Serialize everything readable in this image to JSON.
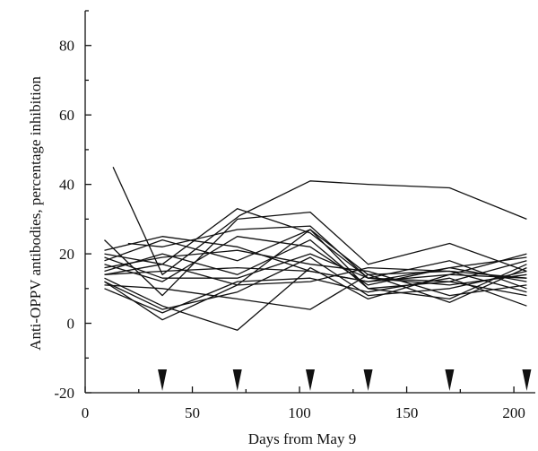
{
  "chart_data": {
    "type": "line",
    "title": "",
    "xlabel": "Days from May 9",
    "ylabel": "Anti-OPPV antibodies, percentage inhibition",
    "xlim": [
      0,
      210
    ],
    "ylim": [
      -20,
      90
    ],
    "x_ticks": [
      0,
      50,
      100,
      150,
      200
    ],
    "y_ticks": [
      -20,
      0,
      20,
      40,
      60,
      80
    ],
    "markers_x": [
      36,
      71,
      105,
      132,
      170,
      206
    ],
    "series": [
      {
        "x": [
          13,
          36,
          72,
          105,
          132,
          170,
          206
        ],
        "y": [
          45,
          14,
          31,
          41,
          40,
          39,
          30
        ]
      },
      {
        "x": [
          9,
          36,
          71,
          105,
          132,
          170,
          206
        ],
        "y": [
          24,
          8,
          30,
          32,
          17,
          23,
          15
        ]
      },
      {
        "x": [
          9,
          36,
          71,
          105,
          132,
          170,
          206
        ],
        "y": [
          20,
          17,
          33,
          26,
          13,
          18,
          10
        ]
      },
      {
        "x": [
          9,
          36,
          71,
          105,
          132,
          170,
          206
        ],
        "y": [
          18,
          24,
          18,
          27,
          14,
          15,
          9
        ]
      },
      {
        "x": [
          9,
          36,
          71,
          105,
          132,
          170,
          206
        ],
        "y": [
          17,
          12,
          25,
          22,
          11,
          16,
          12
        ]
      },
      {
        "x": [
          9,
          36,
          71,
          105,
          132,
          170,
          206
        ],
        "y": [
          15,
          20,
          14,
          24,
          10,
          12,
          18
        ]
      },
      {
        "x": [
          9,
          36,
          71,
          105,
          132,
          170,
          206
        ],
        "y": [
          14,
          15,
          16,
          15,
          12,
          14,
          20
        ]
      },
      {
        "x": [
          9,
          36,
          71,
          105,
          132,
          170,
          206
        ],
        "y": [
          12,
          4,
          9,
          19,
          8,
          10,
          15
        ]
      },
      {
        "x": [
          9,
          36,
          71,
          105,
          132,
          170,
          206
        ],
        "y": [
          11,
          10,
          7,
          4,
          14,
          6,
          16
        ]
      },
      {
        "x": [
          9,
          36,
          71,
          105,
          132,
          170,
          206
        ],
        "y": [
          10,
          3,
          12,
          13,
          9,
          13,
          5
        ]
      },
      {
        "x": [
          9,
          36,
          71,
          105,
          132,
          170,
          206
        ],
        "y": [
          16,
          19,
          21,
          17,
          15,
          8,
          11
        ]
      },
      {
        "x": [
          9,
          36,
          71,
          105,
          132,
          170,
          206
        ],
        "y": [
          19,
          13,
          13,
          20,
          13,
          11,
          14
        ]
      },
      {
        "x": [
          20,
          36,
          71,
          105,
          132,
          170,
          206
        ],
        "y": [
          23,
          22,
          27,
          28,
          13,
          12,
          8
        ]
      },
      {
        "x": [
          9,
          36,
          71,
          105,
          132,
          170,
          206
        ],
        "y": [
          13,
          5,
          -2,
          16,
          7,
          14,
          13
        ]
      },
      {
        "x": [
          9,
          36,
          71,
          105,
          132,
          170,
          206
        ],
        "y": [
          12,
          1,
          11,
          12,
          16,
          15,
          13
        ]
      },
      {
        "x": [
          9,
          36,
          71,
          105,
          132,
          170,
          206
        ],
        "y": [
          21,
          25,
          22,
          15,
          12,
          16,
          19
        ]
      },
      {
        "x": [
          9,
          36,
          71,
          105,
          132,
          170,
          206
        ],
        "y": [
          14,
          17,
          11,
          27,
          10,
          7,
          17
        ]
      }
    ]
  }
}
